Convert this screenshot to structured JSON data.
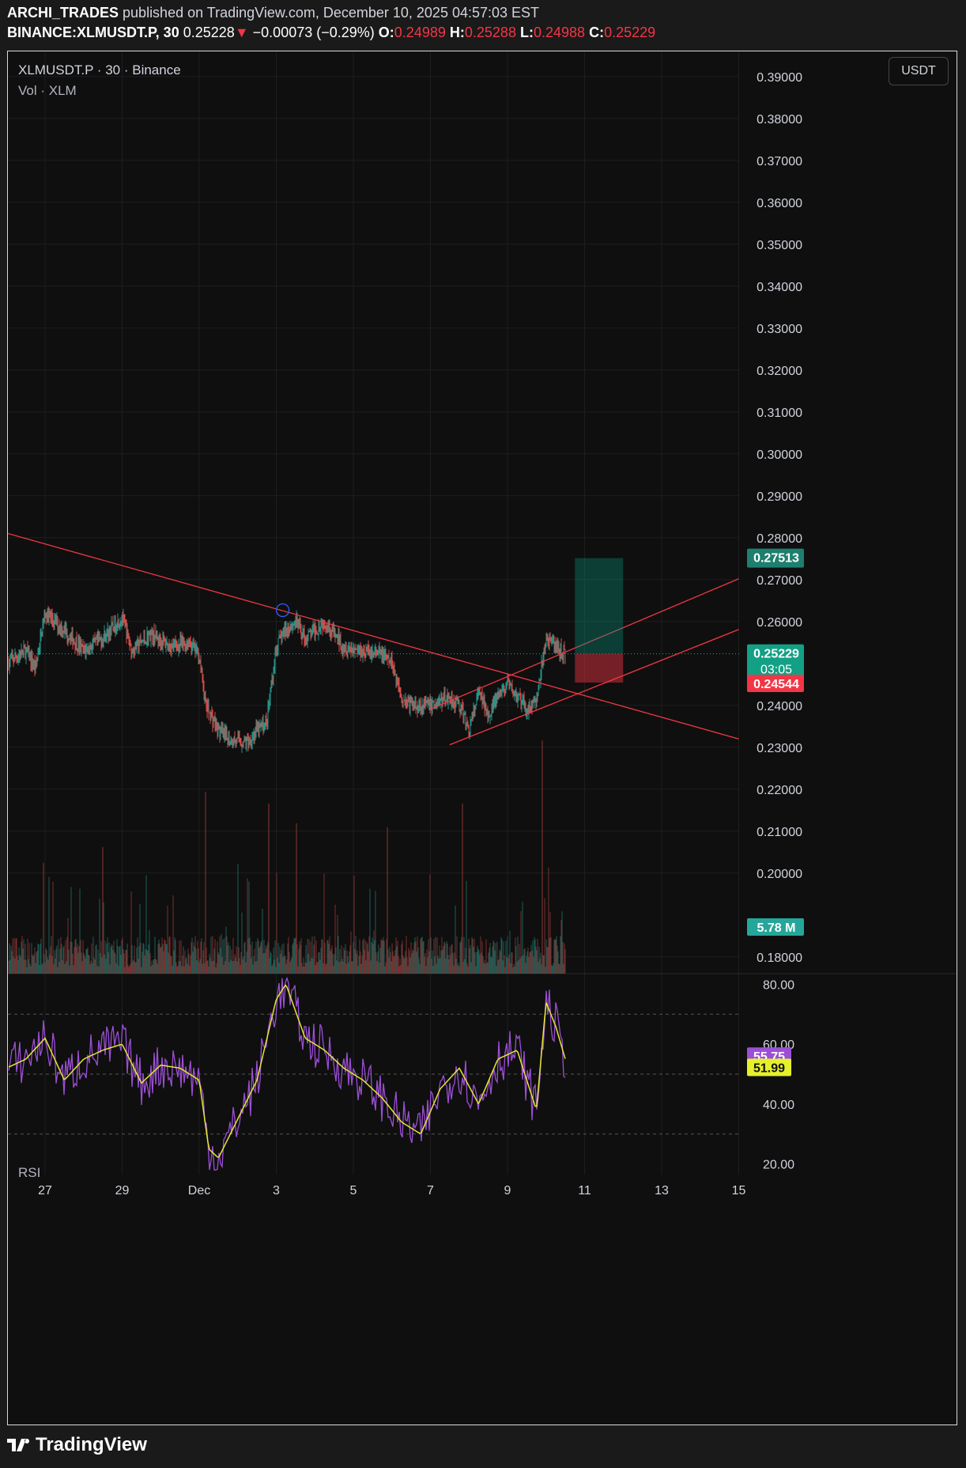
{
  "header": {
    "author": "ARCHI_TRADES",
    "published": "published on TradingView.com, December 10, 2025 04:57:03 EST",
    "symbol": "BINANCE:XLMUSDT.P, 30",
    "last": "0.25228",
    "change": "−0.00073 (−0.29%)",
    "o_label": "O:",
    "o": "0.24989",
    "h_label": "H:",
    "h": "0.25288",
    "l_label": "L:",
    "l": "0.24988",
    "c_label": "C:",
    "c": "0.25229"
  },
  "chart": {
    "title": "XLMUSDT.P · 30 · Binance",
    "vol_label": "Vol · XLM",
    "currency": "USDT",
    "rsi_label": "RSI"
  },
  "footer": {
    "brand": "TradingView"
  },
  "colors": {
    "up": "#26a69a",
    "down": "#ef5350",
    "trend": "#f23645",
    "rsi": "#9c4fd6",
    "rsi_ma": "#e5e635",
    "bg": "#0f0f0f"
  },
  "chart_data": {
    "type": "candlestick",
    "price_axis": {
      "ticks": [
        "0.39000",
        "0.38000",
        "0.37000",
        "0.36000",
        "0.35000",
        "0.34000",
        "0.33000",
        "0.32000",
        "0.31000",
        "0.30000",
        "0.29000",
        "0.28000",
        "0.27000",
        "0.26000",
        "0.24000",
        "0.23000",
        "0.22000",
        "0.21000",
        "0.20000",
        "0.18000"
      ],
      "range": [
        0.176,
        0.396
      ]
    },
    "time_axis": {
      "ticks": [
        "27",
        "29",
        "Dec",
        "3",
        "5",
        "7",
        "9",
        "11",
        "13",
        "15"
      ]
    },
    "price_path": [
      [
        "Nov 26 00:00",
        0.25
      ],
      [
        "Nov 26 12:00",
        0.253
      ],
      [
        "Nov 26 18:00",
        0.249
      ],
      [
        "Nov 27 00:00",
        0.262
      ],
      [
        "Nov 27 12:00",
        0.258
      ],
      [
        "Nov 28 00:00",
        0.253
      ],
      [
        "Nov 28 12:00",
        0.256
      ],
      [
        "Nov 29 00:00",
        0.261
      ],
      [
        "Nov 29 06:00",
        0.253
      ],
      [
        "Nov 29 18:00",
        0.257
      ],
      [
        "Nov 30 06:00",
        0.254
      ],
      [
        "Nov 30 18:00",
        0.255
      ],
      [
        "Dec 1 00:00",
        0.252
      ],
      [
        "Dec 1 04:00",
        0.24
      ],
      [
        "Dec 1 12:00",
        0.234
      ],
      [
        "Dec 1 18:00",
        0.232
      ],
      [
        "Dec 2 06:00",
        0.231
      ],
      [
        "Dec 2 12:00",
        0.234
      ],
      [
        "Dec 2 18:00",
        0.236
      ],
      [
        "Dec 3 00:00",
        0.254
      ],
      [
        "Dec 3 06:00",
        0.258
      ],
      [
        "Dec 3 12:00",
        0.26
      ],
      [
        "Dec 3 18:00",
        0.256
      ],
      [
        "Dec 4 06:00",
        0.26
      ],
      [
        "Dec 4 12:00",
        0.257
      ],
      [
        "Dec 4 18:00",
        0.254
      ],
      [
        "Dec 5 06:00",
        0.253
      ],
      [
        "Dec 5 18:00",
        0.252
      ],
      [
        "Dec 6 00:00",
        0.25
      ],
      [
        "Dec 6 06:00",
        0.242
      ],
      [
        "Dec 6 12:00",
        0.24
      ],
      [
        "Dec 7 00:00",
        0.24
      ],
      [
        "Dec 7 12:00",
        0.242
      ],
      [
        "Dec 7 18:00",
        0.24
      ],
      [
        "Dec 8 00:00",
        0.234
      ],
      [
        "Dec 8 06:00",
        0.243
      ],
      [
        "Dec 8 12:00",
        0.238
      ],
      [
        "Dec 8 18:00",
        0.242
      ],
      [
        "Dec 9 00:00",
        0.245
      ],
      [
        "Dec 9 06:00",
        0.242
      ],
      [
        "Dec 9 12:00",
        0.239
      ],
      [
        "Dec 9 18:00",
        0.241
      ],
      [
        "Dec 10 00:00",
        0.256
      ],
      [
        "Dec 10 06:00",
        0.254
      ],
      [
        "Dec 10 12:00",
        0.252
      ]
    ],
    "trendlines": [
      {
        "name": "descending",
        "from": [
          "Nov 26 00:00",
          0.281
        ],
        "to": [
          "Dec 15 00:00",
          0.232
        ]
      },
      {
        "name": "channel-lower",
        "from": [
          "Dec 7 12:00",
          0.2306
        ],
        "to": [
          "Dec 15 00:00",
          0.2581
        ]
      },
      {
        "name": "channel-upper",
        "from": [
          "Dec 7 00:00",
          0.2391
        ],
        "to": [
          "Dec 15 00:00",
          0.2702
        ]
      }
    ],
    "marker_circle": [
      "Dec 3 04:00",
      0.2627
    ],
    "position": {
      "entry": 0.25229,
      "target": 0.27513,
      "stop": 0.24544,
      "start": "Dec 10 18:00",
      "end": "Dec 12 00:00"
    },
    "price_labels": [
      {
        "value": "0.27513",
        "color": "#1e7f6e"
      },
      {
        "value": "0.25229",
        "sub": "03:05",
        "color": "#13a085"
      },
      {
        "value": "0.24544",
        "color": "#f23645"
      },
      {
        "value": "5.78 M",
        "color": "#26a69a"
      }
    ],
    "volume": {
      "unit": "XLM",
      "last": "5.78 M"
    },
    "rsi": {
      "ticks": [
        "80.00",
        "60.00",
        "40.00",
        "20.00"
      ],
      "range": [
        17,
        83
      ],
      "bands": [
        70,
        50,
        30
      ],
      "last": "55.75",
      "ma_last": "51.99",
      "path": [
        [
          "Nov 26 00:00",
          52
        ],
        [
          "Nov 26 12:00",
          55
        ],
        [
          "Nov 27 00:00",
          62
        ],
        [
          "Nov 27 12:00",
          48
        ],
        [
          "Nov 28 00:00",
          55
        ],
        [
          "Nov 28 12:00",
          58
        ],
        [
          "Nov 29 00:00",
          60
        ],
        [
          "Nov 29 12:00",
          47
        ],
        [
          "Nov 30 00:00",
          53
        ],
        [
          "Nov 30 12:00",
          52
        ],
        [
          "Dec 1 00:00",
          48
        ],
        [
          "Dec 1 06:00",
          25
        ],
        [
          "Dec 1 12:00",
          22
        ],
        [
          "Dec 2 00:00",
          35
        ],
        [
          "Dec 2 12:00",
          48
        ],
        [
          "Dec 3 00:00",
          75
        ],
        [
          "Dec 3 06:00",
          80
        ],
        [
          "Dec 3 18:00",
          62
        ],
        [
          "Dec 4 06:00",
          58
        ],
        [
          "Dec 4 18:00",
          52
        ],
        [
          "Dec 5 06:00",
          48
        ],
        [
          "Dec 5 18:00",
          42
        ],
        [
          "Dec 6 06:00",
          34
        ],
        [
          "Dec 6 18:00",
          30
        ],
        [
          "Dec 7 06:00",
          45
        ],
        [
          "Dec 7 18:00",
          52
        ],
        [
          "Dec 8 06:00",
          40
        ],
        [
          "Dec 8 18:00",
          55
        ],
        [
          "Dec 9 06:00",
          58
        ],
        [
          "Dec 9 18:00",
          38
        ],
        [
          "Dec 10 00:00",
          74
        ],
        [
          "Dec 10 06:00",
          66
        ],
        [
          "Dec 10 12:00",
          55
        ]
      ]
    }
  }
}
